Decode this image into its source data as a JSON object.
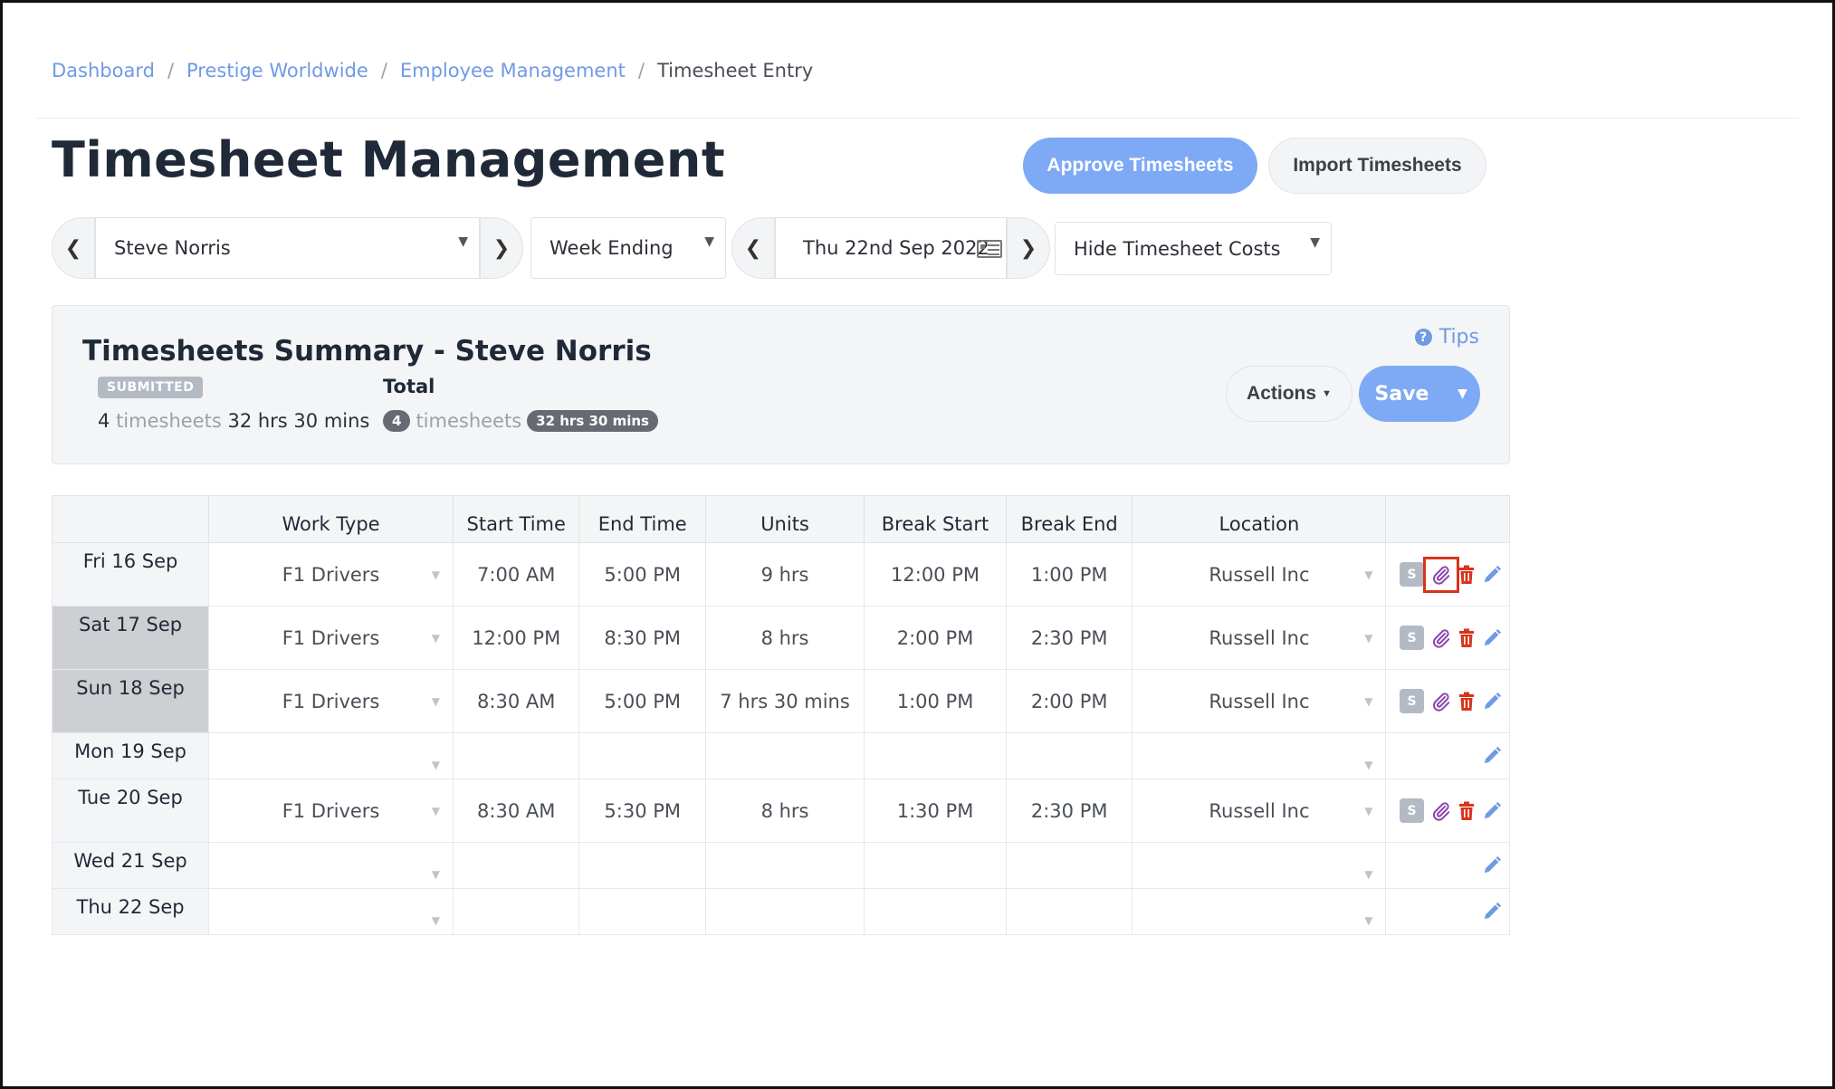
{
  "breadcrumb": {
    "items": [
      "Dashboard",
      "Prestige Worldwide",
      "Employee Management"
    ],
    "current": "Timesheet Entry",
    "separator": "/"
  },
  "page": {
    "title": "Timesheet Management"
  },
  "header_buttons": {
    "approve": "Approve Timesheets",
    "import": "Import Timesheets"
  },
  "filters": {
    "employee": "Steve Norris",
    "period_type": "Week Ending",
    "date": "Thu 22nd Sep 2022",
    "cost_visibility": "Hide Timesheet Costs"
  },
  "summary": {
    "title": "Timesheets Summary - Steve Norris",
    "status_badge": "SUBMITTED",
    "count": "4",
    "count_label": "timesheets",
    "hours": "32 hrs 30 mins",
    "total_label": "Total",
    "total_count": "4",
    "total_count_label": "timesheets",
    "total_hours": "32 hrs 30 mins",
    "tips": "Tips",
    "actions": "Actions",
    "save": "Save"
  },
  "table": {
    "headers": [
      "",
      "Work Type",
      "Start Time",
      "End Time",
      "Units",
      "Break Start",
      "Break End",
      "Location",
      ""
    ],
    "rows": [
      {
        "day": "Fri 16 Sep",
        "work_type": "F1 Drivers",
        "start": "7:00 AM",
        "end": "5:00 PM",
        "units": "9 hrs",
        "break_start": "12:00 PM",
        "break_end": "1:00 PM",
        "location": "Russell Inc",
        "s": "S"
      },
      {
        "day": "Sat 17 Sep",
        "work_type": "F1 Drivers",
        "start": "12:00 PM",
        "end": "8:30 PM",
        "units": "8 hrs",
        "break_start": "2:00 PM",
        "break_end": "2:30 PM",
        "location": "Russell Inc",
        "s": "S"
      },
      {
        "day": "Sun 18 Sep",
        "work_type": "F1 Drivers",
        "start": "8:30 AM",
        "end": "5:00 PM",
        "units": "7 hrs 30 mins",
        "break_start": "1:00 PM",
        "break_end": "2:00 PM",
        "location": "Russell Inc",
        "s": "S"
      },
      {
        "day": "Mon 19 Sep",
        "work_type": "",
        "start": "",
        "end": "",
        "units": "",
        "break_start": "",
        "break_end": "",
        "location": "",
        "s": ""
      },
      {
        "day": "Tue 20 Sep",
        "work_type": "F1 Drivers",
        "start": "8:30 AM",
        "end": "5:30 PM",
        "units": "8 hrs",
        "break_start": "1:30 PM",
        "break_end": "2:30 PM",
        "location": "Russell Inc",
        "s": "S"
      },
      {
        "day": "Wed 21 Sep",
        "work_type": "",
        "start": "",
        "end": "",
        "units": "",
        "break_start": "",
        "break_end": "",
        "location": "",
        "s": ""
      },
      {
        "day": "Thu 22 Sep",
        "work_type": "",
        "start": "",
        "end": "",
        "units": "",
        "break_start": "",
        "break_end": "",
        "location": "",
        "s": ""
      }
    ]
  },
  "colors": {
    "accent": "#7ea9f5",
    "link": "#6f9ae6",
    "attach_icon": "#8e44ad",
    "delete_icon": "#d9331c",
    "highlight": "#d9331c"
  }
}
